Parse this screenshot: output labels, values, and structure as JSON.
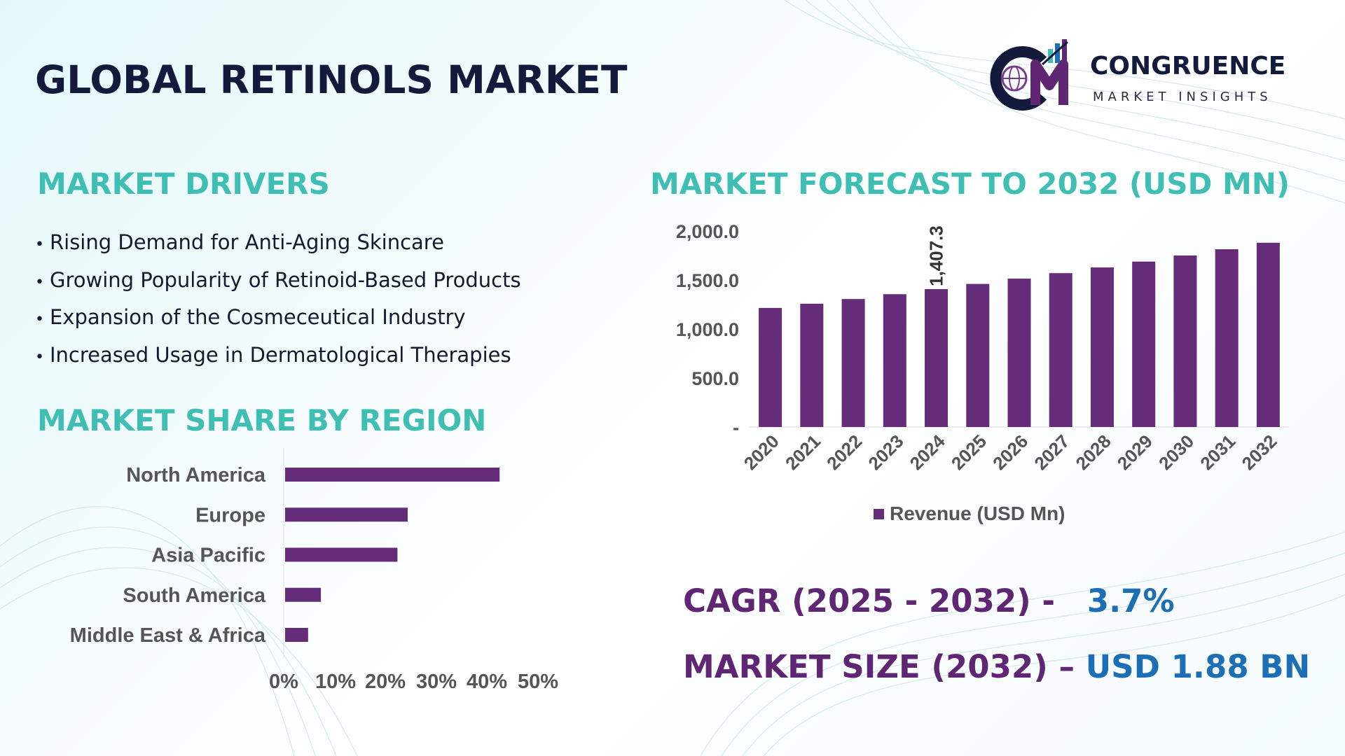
{
  "title": "GLOBAL RETINOLS MARKET",
  "logo": {
    "name": "CONGRUENCE",
    "subtitle": "MARKET INSIGHTS",
    "icon": "cm-globe-chart-logo"
  },
  "sections": {
    "drivers_heading": "MARKET DRIVERS",
    "region_heading": "MARKET SHARE BY REGION",
    "forecast_heading": "MARKET FORECAST TO 2032 (USD MN)"
  },
  "drivers": [
    "Rising Demand for Anti-Aging Skincare",
    "Growing Popularity of Retinoid-Based Products",
    "Expansion of the Cosmeceutical Industry",
    "Increased Usage in Dermatological Therapies"
  ],
  "stats": {
    "cagr_label": "CAGR (2025 - 2032) -",
    "cagr_value": "3.7%",
    "size_label": "MARKET SIZE (2032) –",
    "size_value": "USD 1.88 BN"
  },
  "colors": {
    "bar": "#652c7a",
    "heading": "#3fbfb3",
    "title": "#131a3c",
    "stat_label": "#5e2673",
    "stat_value": "#1c6fb5"
  },
  "chart_data": [
    {
      "type": "bar",
      "orientation": "vertical",
      "categories": [
        "2020",
        "2021",
        "2022",
        "2023",
        "2024",
        "2025",
        "2026",
        "2027",
        "2028",
        "2029",
        "2030",
        "2031",
        "2032"
      ],
      "series": [
        {
          "name": "Revenue (USD Mn)",
          "values": [
            1215,
            1258,
            1306,
            1355,
            1407.3,
            1460,
            1514,
            1570,
            1628,
            1688,
            1750,
            1814,
            1880
          ]
        }
      ],
      "data_labels": [
        {
          "index": 4,
          "text": "1,407.3"
        }
      ],
      "ylim": [
        0,
        2000
      ],
      "yticks": [
        "-",
        "500.0",
        "1,000.0",
        "1,500.0",
        "2,000.0"
      ],
      "ytick_values": [
        0,
        500,
        1000,
        1500,
        2000
      ],
      "legend": "bottom",
      "grid": false
    },
    {
      "type": "bar",
      "orientation": "horizontal",
      "categories": [
        "North America",
        "Europe",
        "Asia Pacific",
        "South America",
        "Middle East & Africa"
      ],
      "values": [
        42,
        24,
        22,
        7,
        4.5
      ],
      "xticks": [
        "0%",
        "10%",
        "20%",
        "30%",
        "40%",
        "50%"
      ],
      "xlim": [
        0,
        50
      ],
      "grid": false
    }
  ]
}
